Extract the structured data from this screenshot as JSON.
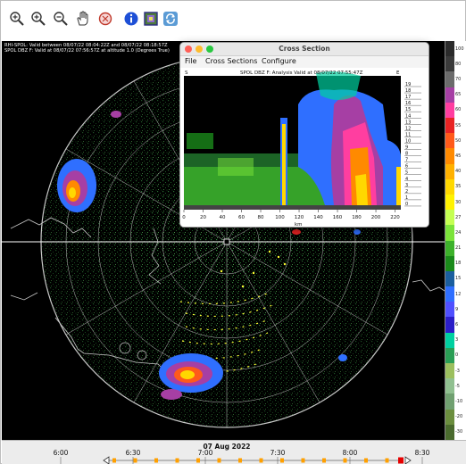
{
  "toolbar": {
    "icons": [
      "zoom-fit-icon",
      "zoom-in-icon",
      "zoom-out-icon",
      "pan-hand-icon",
      "reset-icon",
      "info-icon",
      "layers-icon",
      "refresh-icon"
    ]
  },
  "status": {
    "line1": "RHI-SPOL: Valid between 08/07/22 08:04:22Z  and 08/07/22 08:18:57Z",
    "line2": "SPOL DBZ F: Valid at 08/07/22 07:56:57Z at altitude 1.0 (Degrees True)"
  },
  "colorscale": {
    "labels": [
      "100",
      "80",
      "70",
      "65",
      "60",
      "55",
      "50",
      "45",
      "40",
      "35",
      "30",
      "27",
      "24",
      "21",
      "18",
      "15",
      "12",
      "9",
      "6",
      "3",
      "0",
      "-3",
      "-5",
      "-10",
      "-20",
      "-30"
    ],
    "colors": [
      "#2b2b2b",
      "#3a3a3a",
      "#6b6b6b",
      "#a63fa4",
      "#ff3ea0",
      "#e82323",
      "#ff5a1a",
      "#ff8a00",
      "#ffb100",
      "#ffd800",
      "#fff200",
      "#c4ff52",
      "#7be33a",
      "#3db22b",
      "#1a8a1a",
      "#1b5e9e",
      "#2f6fff",
      "#5050ff",
      "#2b1ec8",
      "#00d0a0",
      "#2a9e55",
      "#9bbf5e",
      "#90c090",
      "#70a070",
      "#6b8e3e",
      "#4a6b2e"
    ]
  },
  "cross_section": {
    "title": "Cross Section",
    "menu": {
      "file": "File",
      "sections": "Cross Sections",
      "configure": "Configure"
    },
    "plot_title": "SPOL DBZ F: Analysis Valid at 08/07/22 07:55:47Z",
    "left_label": "S",
    "right_label": "E",
    "x_ticks": [
      "0",
      "20",
      "40",
      "60",
      "80",
      "100",
      "120",
      "140",
      "160",
      "180",
      "200",
      "220"
    ],
    "x_axis_label": "km",
    "y_ticks": [
      "19",
      "18",
      "17",
      "16",
      "15",
      "14",
      "13",
      "12",
      "11",
      "10",
      "9",
      "8",
      "7",
      "6",
      "5",
      "4",
      "3",
      "2",
      "1",
      "0"
    ]
  },
  "timeline": {
    "date": "07 Aug 2022",
    "ticks": [
      "6:00",
      "6:30",
      "7:00",
      "7:30",
      "8:00",
      "8:30"
    ]
  }
}
